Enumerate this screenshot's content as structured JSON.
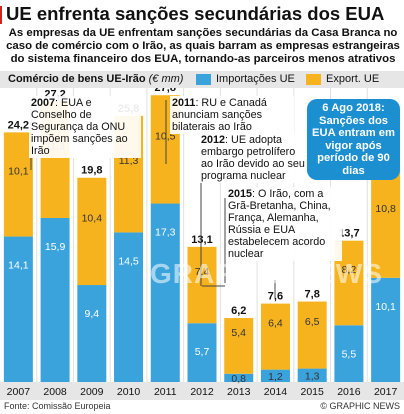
{
  "title": "UE enfrenta sanções secundárias dos EUA",
  "subtitle": "As empresas da UE enfrentam sanções secundárias da Casa Branca no caso de comércio com o Irão, as quais barram as empresas estrangeiras do sistema financeiro dos EUA, tornando-as parceiros menos atrativos",
  "callout": "6 Ago 2018: Sanções dos EUA entram em vigor após período de 90 dias",
  "annotations": [
    {
      "year": "2007",
      "text": ": EUA e Conselho de Segurança da ONU impõem sanções ao Irão"
    },
    {
      "year": "2011",
      "text": ": RU e Canadá anunciam sanções bilaterais ao Irão"
    },
    {
      "year": "2012",
      "text": ": UE adopta embargo petrolífero ao Irão devido ao seu programa nuclear"
    },
    {
      "year": "2015",
      "text": ": O Irão, com a Grã-Bretanha, China, França, Alemanha, Rússia e EUA estabelecem acordo nuclear"
    }
  ],
  "watermark": "GRAPHIC NEWS",
  "source": "Fonte: Comissão Europeia",
  "brand": "© GRAPHIC NEWS",
  "colors": {
    "imports": "#3ba3dc",
    "exports": "#f6b31e",
    "accent": "#d0241c",
    "callout": "#1c8fd0"
  },
  "chart_data": {
    "type": "bar",
    "stacked": true,
    "ylabel_bold": "Comércio de bens UE-Irão",
    "ylabel_unit": "(€ mm)",
    "categories": [
      "2007",
      "2008",
      "2009",
      "2010",
      "2011",
      "2012",
      "2013",
      "2014",
      "2015",
      "2016",
      "2017"
    ],
    "series": [
      {
        "name": "Importações UE",
        "values": [
          14.1,
          15.9,
          9.4,
          14.5,
          17.3,
          5.7,
          0.8,
          1.2,
          1.3,
          5.5,
          10.1
        ]
      },
      {
        "name": "Export. UE",
        "values": [
          10.1,
          11.3,
          10.4,
          11.3,
          10.5,
          7.4,
          5.4,
          6.4,
          6.5,
          8.2,
          10.8
        ]
      }
    ],
    "totals": [
      24.2,
      27.2,
      19.8,
      25.8,
      27.8,
      13.1,
      6.2,
      7.6,
      7.8,
      13.7,
      20.9
    ],
    "ylim": [
      0,
      28.5
    ],
    "grid": false,
    "legend_position": "top-right"
  }
}
